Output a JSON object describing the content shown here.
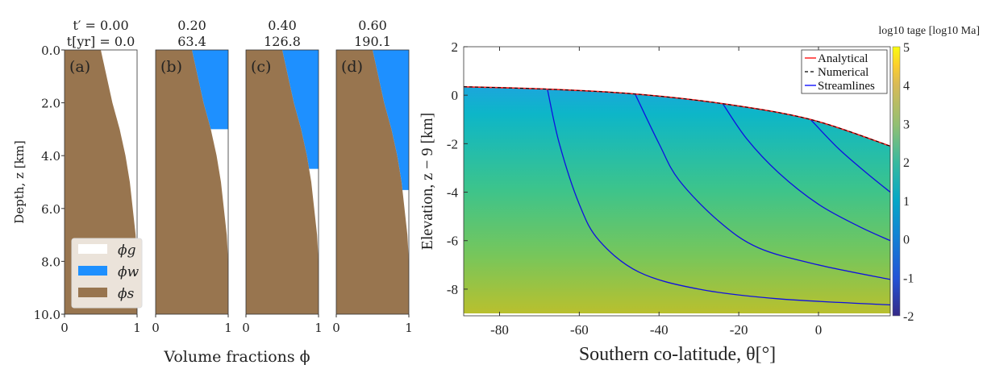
{
  "chart_data": [
    {
      "type": "area",
      "panels": [
        {
          "label": "(a)",
          "title_top": "t′ = 0.00",
          "title_bottom": "t[yr] = 0.0",
          "water_depth": 0
        },
        {
          "label": "(b)",
          "title_top": "0.20",
          "title_bottom": "63.4",
          "water_depth": 3.0
        },
        {
          "label": "(c)",
          "title_top": "0.40",
          "title_bottom": "126.8",
          "water_depth": 4.5
        },
        {
          "label": "(d)",
          "title_top": "0.60",
          "title_bottom": "190.1",
          "water_depth": 5.3
        }
      ],
      "solid_profile": {
        "z": [
          0,
          1,
          2,
          3,
          4,
          5,
          6,
          7,
          8,
          10
        ],
        "phi_s": [
          0.5,
          0.58,
          0.66,
          0.76,
          0.84,
          0.9,
          0.94,
          0.98,
          1.0,
          1.0
        ]
      },
      "xlabel": "Volume fractions ϕ",
      "ylabel": "Depth, z [km]",
      "xlim": [
        0,
        1
      ],
      "ylim": [
        10,
        0
      ],
      "xticks": [
        "0",
        "1"
      ],
      "yticks": [
        "0.0",
        "2.0",
        "4.0",
        "6.0",
        "8.0",
        "10.0"
      ],
      "legend": {
        "placement": "lower-left",
        "entries": [
          {
            "name": "ϕg",
            "color": "#ffffff"
          },
          {
            "name": "ϕw",
            "color": "#1e90ff"
          },
          {
            "name": "ϕs",
            "color": "#98754f"
          }
        ]
      }
    },
    {
      "type": "heatmap",
      "xlabel": "Southern co-latitude, θ[°]",
      "ylabel": "Elevation, z − 9 [km]",
      "xlim": [
        -89,
        18
      ],
      "ylim": [
        -9.1,
        2
      ],
      "xticks": [
        "-80",
        "-60",
        "-40",
        "-20",
        "0"
      ],
      "yticks": [
        "2",
        "0",
        "-2",
        "-4",
        "-6",
        "-8"
      ],
      "colorbar": {
        "label": "log10 tage [log10 Ma]",
        "range": [
          -2,
          5
        ],
        "ticks": [
          "5",
          "4",
          "3",
          "2",
          "1",
          "0",
          "-1",
          "-2"
        ],
        "colormap": "parula"
      },
      "field_top_value": 0.8,
      "field_bottom_value": 3.3,
      "surface": {
        "theta": [
          -89,
          -68,
          -46,
          -24,
          -2,
          18
        ],
        "z": [
          0.35,
          0.25,
          0.05,
          -0.35,
          -1.0,
          -2.1
        ]
      },
      "streamlines": [
        {
          "theta": [
            -68,
            -65,
            -60,
            -55,
            -45,
            -30,
            -10,
            18
          ],
          "z": [
            0.25,
            -2,
            -4.5,
            -6,
            -7.3,
            -8,
            -8.4,
            -8.65
          ]
        },
        {
          "theta": [
            -46,
            -40,
            -35,
            -25,
            -15,
            0,
            18
          ],
          "z": [
            0.05,
            -2,
            -3.5,
            -5.2,
            -6.3,
            -7,
            -7.6
          ]
        },
        {
          "theta": [
            -24,
            -18,
            -10,
            0,
            10,
            18
          ],
          "z": [
            -0.35,
            -1.8,
            -3.2,
            -4.5,
            -5.4,
            -6.0
          ]
        },
        {
          "theta": [
            -2,
            5,
            12,
            18
          ],
          "z": [
            -1.0,
            -2.2,
            -3.2,
            -4.0
          ]
        }
      ],
      "legend": {
        "placement": "top-right",
        "entries": [
          {
            "name": "Analytical",
            "color": "#ff0000",
            "style": "solid"
          },
          {
            "name": "Numerical",
            "color": "#000000",
            "style": "dashed"
          },
          {
            "name": "Streamlines",
            "color": "#0000ff",
            "style": "solid"
          }
        ]
      }
    }
  ]
}
